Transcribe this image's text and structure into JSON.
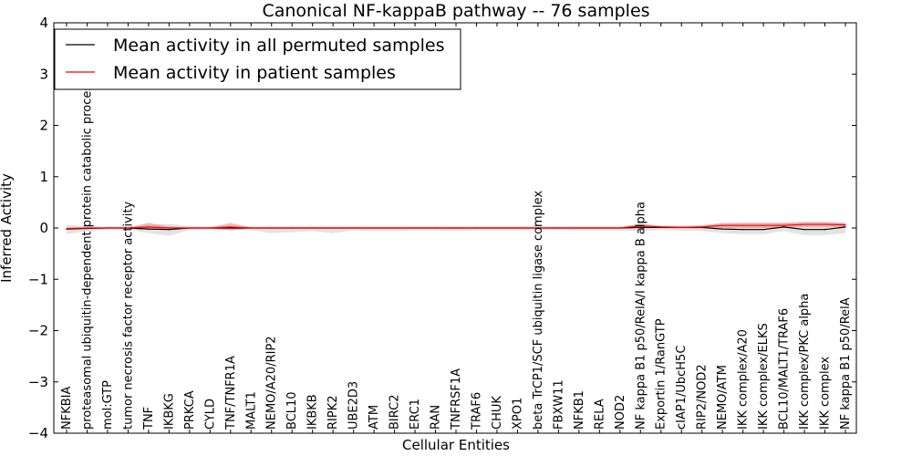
{
  "chart_data": {
    "type": "line",
    "title": "Canonical NF-kappaB pathway -- 76 samples",
    "xlabel": "Cellular Entities",
    "ylabel": "Inferred Activity",
    "ylim": [
      -4,
      4
    ],
    "yticks": [
      -4,
      -3,
      -2,
      -1,
      0,
      1,
      2,
      3,
      4
    ],
    "ytick_labels": [
      "−4",
      "−3",
      "−2",
      "−1",
      "0",
      "1",
      "2",
      "3",
      "4"
    ],
    "legend_position": "top-left",
    "categories": [
      "NFKBIA",
      "proteasomal ubiquitin-dependent protein catabolic process",
      "mol:GTP",
      "tumor necrosis factor receptor activity",
      "TNF",
      "IKBKG",
      "PRKCA",
      "CYLD",
      "TNF/TNFR1A",
      "MALT1",
      "NEMO/A20/RIP2",
      "BCL10",
      "IKBKB",
      "RIPK2",
      "UBE2D3",
      "ATM",
      "BIRC2",
      "ERC1",
      "RAN",
      "TNFRSF1A",
      "TRAF6",
      "CHUK",
      "XPO1",
      "beta TrCP1/SCF ubiquitin ligase complex",
      "FBXW11",
      "NFKB1",
      "RELA",
      "NOD2",
      "NF kappa B1 p50/RelA/I kappa B alpha",
      "Exportin 1/RanGTP",
      "cIAP1/UbcH5C",
      "RIP2/NOD2",
      "NEMO/ATM",
      "IKK complex/A20",
      "IKK complex/ELKS",
      "BCL10/MALT1/TRAF6",
      "IKK complex/PKC alpha",
      "IKK complex",
      "NF kappa B1 p50/RelA"
    ],
    "series": [
      {
        "name": "Mean activity in all permuted samples",
        "color": "#000000",
        "band_color": "#d9d9d9",
        "values": [
          -0.02,
          -0.01,
          0,
          0,
          -0.02,
          -0.03,
          0,
          0,
          0,
          0,
          0,
          0,
          0,
          0,
          0,
          0,
          0,
          0,
          0,
          0,
          0,
          0,
          0,
          0,
          0,
          0,
          0,
          0,
          0.01,
          0.01,
          0.01,
          0.01,
          -0.02,
          -0.03,
          -0.03,
          0.02,
          -0.03,
          -0.03,
          0.02
        ],
        "band_lower": [
          -0.12,
          -0.06,
          -0.03,
          -0.03,
          -0.1,
          -0.15,
          -0.04,
          -0.03,
          -0.03,
          -0.04,
          -0.1,
          -0.08,
          -0.06,
          -0.1,
          -0.05,
          -0.06,
          -0.06,
          -0.05,
          -0.05,
          -0.06,
          -0.05,
          -0.05,
          -0.05,
          -0.04,
          -0.04,
          -0.05,
          -0.05,
          -0.05,
          -0.06,
          -0.04,
          -0.05,
          -0.06,
          -0.1,
          -0.12,
          -0.12,
          -0.06,
          -0.14,
          -0.14,
          -0.1
        ],
        "band_upper": [
          0.06,
          0.04,
          0.03,
          0.03,
          0.06,
          0.08,
          0.04,
          0.03,
          0.03,
          0.03,
          0.04,
          0.04,
          0.04,
          0.04,
          0.04,
          0.04,
          0.04,
          0.04,
          0.04,
          0.04,
          0.04,
          0.04,
          0.04,
          0.04,
          0.04,
          0.04,
          0.04,
          0.04,
          0.08,
          0.05,
          0.05,
          0.06,
          0.08,
          0.1,
          0.1,
          0.1,
          0.1,
          0.1,
          0.1
        ]
      },
      {
        "name": "Mean activity in patient samples",
        "color": "#ff0000",
        "band_color": "#f08080",
        "values": [
          -0.01,
          0,
          0,
          0,
          0.02,
          0,
          0,
          0,
          0.02,
          0,
          0,
          0,
          0,
          0,
          0,
          0,
          0,
          0,
          0,
          0,
          0,
          0,
          0,
          0,
          0,
          0,
          0,
          0,
          0.04,
          0.02,
          0.01,
          0.02,
          0.05,
          0.05,
          0.05,
          0.05,
          0.07,
          0.07,
          0.06
        ],
        "band_lower": [
          -0.02,
          -0.01,
          -0.01,
          -0.01,
          -0.03,
          -0.02,
          -0.01,
          -0.01,
          -0.05,
          -0.01,
          -0.01,
          -0.01,
          -0.01,
          -0.01,
          -0.01,
          -0.01,
          -0.01,
          -0.01,
          -0.01,
          -0.01,
          -0.01,
          -0.01,
          -0.01,
          -0.01,
          -0.01,
          -0.01,
          -0.01,
          -0.01,
          0,
          0,
          -0.01,
          -0.01,
          0,
          0,
          0,
          0,
          0.02,
          0.02,
          0.02
        ],
        "band_upper": [
          0.01,
          0.01,
          0.01,
          0.01,
          0.1,
          0.03,
          0.01,
          0.01,
          0.1,
          0.01,
          0.01,
          0.01,
          0.01,
          0.01,
          0.01,
          0.01,
          0.01,
          0.01,
          0.01,
          0.01,
          0.01,
          0.01,
          0.01,
          0.01,
          0.01,
          0.01,
          0.01,
          0.01,
          0.08,
          0.04,
          0.03,
          0.05,
          0.1,
          0.1,
          0.1,
          0.1,
          0.12,
          0.12,
          0.1
        ]
      }
    ]
  }
}
